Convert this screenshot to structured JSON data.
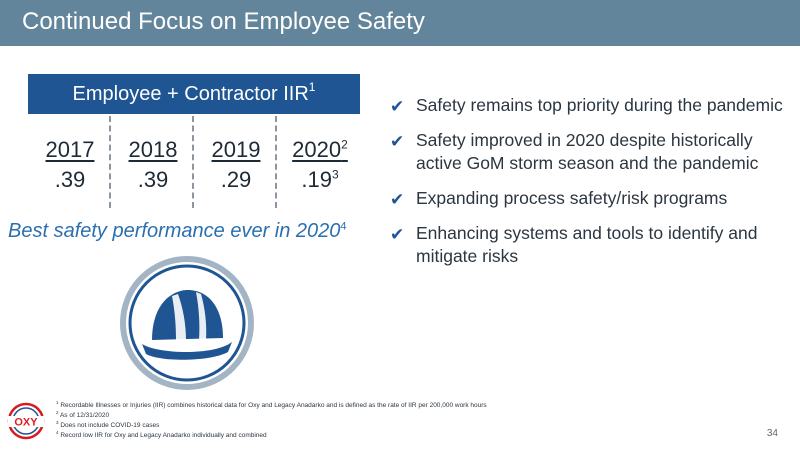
{
  "title": "Continued Focus on Employee Safety",
  "iir": {
    "header": "Employee + Contractor IIR",
    "header_note": "1",
    "years": [
      {
        "year": "2017",
        "year_note": "",
        "value": ".39",
        "value_note": ""
      },
      {
        "year": "2018",
        "year_note": "",
        "value": ".39",
        "value_note": ""
      },
      {
        "year": "2019",
        "year_note": "",
        "value": ".29",
        "value_note": ""
      },
      {
        "year": "2020",
        "year_note": "2",
        "value": ".19",
        "value_note": "3"
      }
    ]
  },
  "best": {
    "text": "Best safety performance ever in 2020",
    "note": "4"
  },
  "bullets": [
    "Safety remains top priority during the pandemic",
    "Safety improved in 2020 despite historically active GoM storm season and the pandemic",
    "Expanding process safety/risk programs",
    "Enhancing systems and tools to identify and mitigate risks"
  ],
  "logo": {
    "text": "OXY",
    "brand_color": "#e31b23",
    "ring_colors": [
      "#d71920",
      "#1e5592"
    ]
  },
  "footnotes": [
    {
      "num": "1",
      "text": "Recordable Illnesses or Injuries (IIR) combines historical data for Oxy and Legacy Anadarko and is defined as the rate of IIR per 200,000 work hours"
    },
    {
      "num": "2",
      "text": "As of 12/31/2020"
    },
    {
      "num": "3",
      "text": "Does not include COVID-19 cases"
    },
    {
      "num": "4",
      "text": "Record low IIR for Oxy and Legacy Anadarko individually and combined"
    }
  ],
  "page_number": "34",
  "colors": {
    "title_bar": "#62859b",
    "header_blue": "#1e5592",
    "accent_text": "#2a6fb0",
    "helmet": "#1e5592",
    "ring": "#a3b5c4"
  },
  "icons": {
    "bullet": "check-icon",
    "helmet": "hard-hat-icon"
  }
}
